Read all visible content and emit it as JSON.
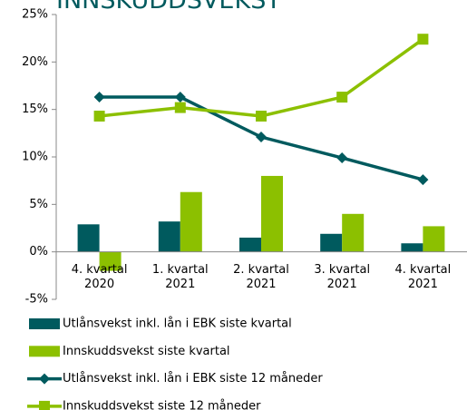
{
  "chart_data": {
    "type": "bar-line",
    "title": "INNSKUDDSVEKST",
    "categories": [
      [
        "4. kvartal",
        "2020"
      ],
      [
        "1. kvartal",
        "2021"
      ],
      [
        "2. kvartal",
        "2021"
      ],
      [
        "3. kvartal",
        "2021"
      ],
      [
        "4. kvartal",
        "2021"
      ]
    ],
    "series": [
      {
        "name": "Utlånsvekst inkl. lån i EBK siste kvartal",
        "type": "bar",
        "color": "#005a5e",
        "values": [
          2.9,
          3.2,
          1.5,
          1.9,
          0.9
        ]
      },
      {
        "name": "Innskuddsvekst siste kvartal",
        "type": "bar",
        "color": "#8cc000",
        "values": [
          -2.0,
          6.3,
          8.0,
          4.0,
          2.7
        ]
      },
      {
        "name": "Utlånsvekst inkl. lån i EBK siste 12 måneder",
        "type": "line",
        "marker": "diamond",
        "color": "#005a5e",
        "values": [
          16.3,
          16.3,
          12.1,
          9.9,
          7.6
        ]
      },
      {
        "name": "Innskuddsvekst siste 12 måneder",
        "type": "line",
        "marker": "square",
        "color": "#8cc000",
        "values": [
          14.3,
          15.2,
          14.3,
          16.3,
          22.4
        ]
      }
    ],
    "ylim": [
      -5,
      25
    ],
    "yticks": [
      {
        "value": -5,
        "label": "-5%"
      },
      {
        "value": 0,
        "label": "0%"
      },
      {
        "value": 5,
        "label": "5%"
      },
      {
        "value": 10,
        "label": "10%"
      },
      {
        "value": 15,
        "label": "15%"
      },
      {
        "value": 20,
        "label": "20%"
      },
      {
        "value": 25,
        "label": "25%"
      }
    ],
    "grid": false,
    "legend": "bottom"
  }
}
